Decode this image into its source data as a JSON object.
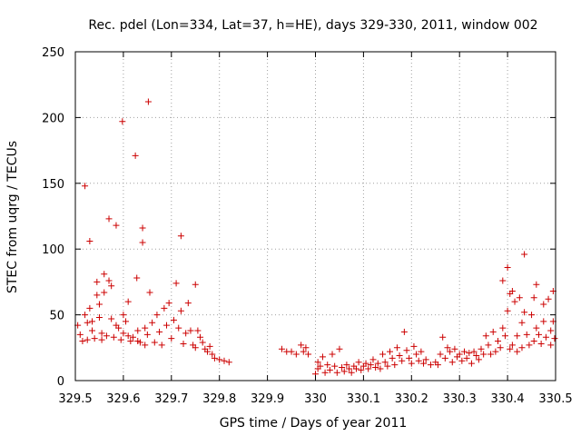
{
  "chart_data": {
    "type": "scatter",
    "title": "Rec. pdel (Lon=334, Lat=37, h=HE), days 329-330, 2011, window 002",
    "xlabel": "GPS time / Days of year 2011",
    "ylabel": "STEC from uqrg / TECUs",
    "xlim": [
      329.5,
      330.5
    ],
    "ylim": [
      0,
      250
    ],
    "xticks": [
      329.5,
      329.6,
      329.7,
      329.8,
      329.9,
      330.0,
      330.1,
      330.2,
      330.3,
      330.4,
      330.5
    ],
    "xtick_labels": [
      "329.5",
      "329.6",
      "329.7",
      "329.8",
      "329.9",
      "330",
      "330.1",
      "330.2",
      "330.3",
      "330.4",
      "330.5"
    ],
    "yticks": [
      0,
      50,
      100,
      150,
      200,
      250
    ],
    "ytick_labels": [
      "0",
      "50",
      "100",
      "150",
      "200",
      "250"
    ],
    "grid": true,
    "marker": "+",
    "color": "#cc0000",
    "series": [
      {
        "name": "STEC",
        "points": [
          [
            329.505,
            42
          ],
          [
            329.51,
            35
          ],
          [
            329.515,
            30
          ],
          [
            329.52,
            148
          ],
          [
            329.52,
            50
          ],
          [
            329.525,
            44
          ],
          [
            329.525,
            31
          ],
          [
            329.53,
            106
          ],
          [
            329.53,
            55
          ],
          [
            329.535,
            45
          ],
          [
            329.535,
            38
          ],
          [
            329.54,
            32
          ],
          [
            329.545,
            75
          ],
          [
            329.545,
            65
          ],
          [
            329.55,
            58
          ],
          [
            329.55,
            48
          ],
          [
            329.555,
            36
          ],
          [
            329.555,
            31
          ],
          [
            329.56,
            81
          ],
          [
            329.56,
            67
          ],
          [
            329.565,
            34
          ],
          [
            329.57,
            123
          ],
          [
            329.57,
            76
          ],
          [
            329.575,
            72
          ],
          [
            329.575,
            47
          ],
          [
            329.58,
            33
          ],
          [
            329.585,
            118
          ],
          [
            329.585,
            42
          ],
          [
            329.59,
            40
          ],
          [
            329.595,
            31
          ],
          [
            329.598,
            197
          ],
          [
            329.6,
            50
          ],
          [
            329.6,
            36
          ],
          [
            329.605,
            45
          ],
          [
            329.61,
            60
          ],
          [
            329.61,
            34
          ],
          [
            329.615,
            30
          ],
          [
            329.62,
            33
          ],
          [
            329.625,
            171
          ],
          [
            329.628,
            78
          ],
          [
            329.63,
            38
          ],
          [
            329.63,
            30
          ],
          [
            329.635,
            29
          ],
          [
            329.64,
            116
          ],
          [
            329.64,
            105
          ],
          [
            329.645,
            40
          ],
          [
            329.645,
            27
          ],
          [
            329.65,
            35
          ],
          [
            329.652,
            212
          ],
          [
            329.655,
            67
          ],
          [
            329.66,
            44
          ],
          [
            329.665,
            29
          ],
          [
            329.67,
            50
          ],
          [
            329.675,
            37
          ],
          [
            329.68,
            27
          ],
          [
            329.685,
            55
          ],
          [
            329.69,
            42
          ],
          [
            329.695,
            59
          ],
          [
            329.7,
            32
          ],
          [
            329.705,
            46
          ],
          [
            329.71,
            74
          ],
          [
            329.715,
            40
          ],
          [
            329.72,
            110
          ],
          [
            329.72,
            53
          ],
          [
            329.725,
            28
          ],
          [
            329.73,
            36
          ],
          [
            329.735,
            59
          ],
          [
            329.74,
            38
          ],
          [
            329.745,
            27
          ],
          [
            329.75,
            73
          ],
          [
            329.75,
            25
          ],
          [
            329.755,
            38
          ],
          [
            329.76,
            33
          ],
          [
            329.765,
            29
          ],
          [
            329.77,
            24
          ],
          [
            329.775,
            22
          ],
          [
            329.78,
            26
          ],
          [
            329.785,
            20
          ],
          [
            329.79,
            17
          ],
          [
            329.8,
            16
          ],
          [
            329.81,
            15
          ],
          [
            329.82,
            14
          ],
          [
            329.93,
            24
          ],
          [
            329.94,
            22
          ],
          [
            329.95,
            22
          ],
          [
            329.96,
            20
          ],
          [
            329.97,
            27
          ],
          [
            329.975,
            22
          ],
          [
            329.98,
            25
          ],
          [
            329.985,
            20
          ],
          [
            330.0,
            5
          ],
          [
            330.005,
            9
          ],
          [
            330.005,
            14
          ],
          [
            330.01,
            11
          ],
          [
            330.015,
            18
          ],
          [
            330.02,
            6
          ],
          [
            330.025,
            12
          ],
          [
            330.03,
            8
          ],
          [
            330.035,
            20
          ],
          [
            330.04,
            11
          ],
          [
            330.045,
            6
          ],
          [
            330.05,
            24
          ],
          [
            330.055,
            10
          ],
          [
            330.06,
            7
          ],
          [
            330.065,
            12
          ],
          [
            330.07,
            9
          ],
          [
            330.075,
            6
          ],
          [
            330.08,
            11
          ],
          [
            330.085,
            9
          ],
          [
            330.09,
            14
          ],
          [
            330.095,
            8
          ],
          [
            330.1,
            11
          ],
          [
            330.105,
            13
          ],
          [
            330.11,
            9
          ],
          [
            330.115,
            12
          ],
          [
            330.12,
            16
          ],
          [
            330.125,
            10
          ],
          [
            330.13,
            13
          ],
          [
            330.135,
            9
          ],
          [
            330.14,
            20
          ],
          [
            330.145,
            14
          ],
          [
            330.15,
            11
          ],
          [
            330.155,
            22
          ],
          [
            330.16,
            17
          ],
          [
            330.165,
            12
          ],
          [
            330.17,
            25
          ],
          [
            330.175,
            19
          ],
          [
            330.18,
            15
          ],
          [
            330.185,
            37
          ],
          [
            330.19,
            23
          ],
          [
            330.195,
            17
          ],
          [
            330.2,
            13
          ],
          [
            330.205,
            26
          ],
          [
            330.21,
            20
          ],
          [
            330.215,
            15
          ],
          [
            330.22,
            22
          ],
          [
            330.225,
            13
          ],
          [
            330.23,
            16
          ],
          [
            330.24,
            12
          ],
          [
            330.25,
            14
          ],
          [
            330.255,
            12
          ],
          [
            330.26,
            20
          ],
          [
            330.265,
            33
          ],
          [
            330.27,
            17
          ],
          [
            330.275,
            25
          ],
          [
            330.28,
            22
          ],
          [
            330.285,
            14
          ],
          [
            330.29,
            24
          ],
          [
            330.295,
            18
          ],
          [
            330.3,
            20
          ],
          [
            330.305,
            15
          ],
          [
            330.31,
            22
          ],
          [
            330.315,
            17
          ],
          [
            330.32,
            21
          ],
          [
            330.325,
            13
          ],
          [
            330.33,
            22
          ],
          [
            330.335,
            19
          ],
          [
            330.34,
            16
          ],
          [
            330.345,
            24
          ],
          [
            330.35,
            20
          ],
          [
            330.355,
            34
          ],
          [
            330.36,
            27
          ],
          [
            330.365,
            20
          ],
          [
            330.37,
            37
          ],
          [
            330.375,
            22
          ],
          [
            330.38,
            30
          ],
          [
            330.385,
            25
          ],
          [
            330.39,
            76
          ],
          [
            330.39,
            40
          ],
          [
            330.395,
            34
          ],
          [
            330.4,
            86
          ],
          [
            330.4,
            53
          ],
          [
            330.405,
            66
          ],
          [
            330.405,
            24
          ],
          [
            330.41,
            68
          ],
          [
            330.41,
            27
          ],
          [
            330.415,
            60
          ],
          [
            330.42,
            34
          ],
          [
            330.42,
            22
          ],
          [
            330.425,
            63
          ],
          [
            330.43,
            44
          ],
          [
            330.43,
            25
          ],
          [
            330.435,
            96
          ],
          [
            330.435,
            52
          ],
          [
            330.44,
            35
          ],
          [
            330.445,
            27
          ],
          [
            330.45,
            50
          ],
          [
            330.455,
            63
          ],
          [
            330.455,
            30
          ],
          [
            330.46,
            73
          ],
          [
            330.46,
            40
          ],
          [
            330.465,
            35
          ],
          [
            330.47,
            28
          ],
          [
            330.475,
            58
          ],
          [
            330.475,
            45
          ],
          [
            330.48,
            33
          ],
          [
            330.485,
            62
          ],
          [
            330.49,
            38
          ],
          [
            330.49,
            27
          ],
          [
            330.495,
            68
          ],
          [
            330.495,
            45
          ],
          [
            330.498,
            32
          ]
        ]
      }
    ]
  }
}
